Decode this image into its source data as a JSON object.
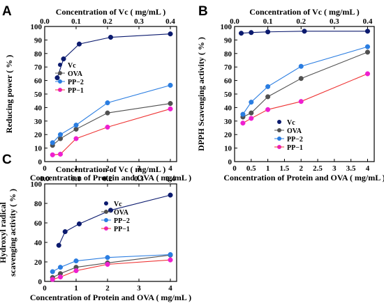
{
  "colors": {
    "Vc": "#0b1a6e",
    "OVA": "#505050",
    "PP-2": "#2a7de1",
    "PP-1": "#ee1fd0",
    "PP-1-line": "#ee3333"
  },
  "chart_data": [
    {
      "panel": "A",
      "type": "line",
      "xlabel": "Concentration of Protein and OVA ( mg/mL )",
      "x2label": "Concentration of Vc ( mg/mL )",
      "ylabel": "Reducing power ( % )",
      "xlim": [
        0,
        4.2
      ],
      "x2lim": [
        0,
        0.42
      ],
      "ylim": [
        0,
        100
      ],
      "xticks": [
        0,
        1,
        2,
        3,
        4
      ],
      "x2ticks": [
        0.0,
        0.1,
        0.2,
        0.3,
        0.4
      ],
      "yticks": [
        0,
        10,
        20,
        30,
        40,
        50,
        60,
        70,
        80,
        90,
        100
      ],
      "legend": "center-left",
      "series": [
        {
          "name": "Vc",
          "axis": "top",
          "x": [
            0.04,
            0.06,
            0.11,
            0.21,
            0.4
          ],
          "y": [
            62,
            76,
            87,
            92,
            94.5
          ]
        },
        {
          "name": "OVA",
          "axis": "bottom",
          "x": [
            0.25,
            0.5,
            1,
            2,
            4
          ],
          "y": [
            12,
            17,
            24,
            36,
            43
          ]
        },
        {
          "name": "PP−2",
          "axis": "bottom",
          "x": [
            0.25,
            0.5,
            1,
            2,
            4
          ],
          "y": [
            14,
            20,
            27,
            43.5,
            56.5
          ]
        },
        {
          "name": "PP−1",
          "axis": "bottom",
          "x": [
            0.25,
            0.5,
            1,
            2,
            4
          ],
          "y": [
            5,
            5.5,
            17,
            25.5,
            39
          ]
        }
      ]
    },
    {
      "panel": "B",
      "type": "line",
      "xlabel": "Concentration of Protein and OVA ( mg/mL )",
      "x2label": "Concentration of Vc ( mg/mL )",
      "ylabel": "DPPH Scavenging activity ( % )",
      "xlim": [
        0,
        4.2
      ],
      "x2lim": [
        0,
        0.42
      ],
      "ylim": [
        0,
        100
      ],
      "xticks": [
        0,
        0.5,
        1,
        1.5,
        2,
        2.5,
        3,
        3.5,
        4
      ],
      "x2ticks": [
        0.0,
        0.1,
        0.2,
        0.3,
        0.4
      ],
      "yticks": [
        0,
        10,
        20,
        30,
        40,
        50,
        60,
        70,
        80,
        90,
        100
      ],
      "legend": "lower-center",
      "series": [
        {
          "name": "Vc",
          "axis": "top",
          "x": [
            0.02,
            0.05,
            0.1,
            0.21,
            0.4
          ],
          "y": [
            95,
            95.5,
            96,
            96.5,
            96.5
          ]
        },
        {
          "name": "OVA",
          "axis": "bottom",
          "x": [
            0.25,
            0.5,
            1,
            2,
            4
          ],
          "y": [
            33,
            36,
            48,
            61.5,
            81
          ]
        },
        {
          "name": "PP−2",
          "axis": "bottom",
          "x": [
            0.25,
            0.5,
            1,
            2,
            4
          ],
          "y": [
            35,
            44,
            55.5,
            70.5,
            85
          ]
        },
        {
          "name": "PP−1",
          "axis": "bottom",
          "x": [
            0.25,
            0.5,
            1,
            2,
            4
          ],
          "y": [
            28.5,
            32,
            38.5,
            44.5,
            65
          ]
        }
      ]
    },
    {
      "panel": "C",
      "type": "line",
      "xlabel": "Concentration of Protein and OVA ( mg/mL )",
      "x2label": "Concentration of Vc ( mg/mL )",
      "ylabel": "Hydroxyl radical scavenging activity ( % )",
      "xlim": [
        0,
        4.2
      ],
      "x2lim": [
        0,
        0.42
      ],
      "ylim": [
        0,
        100
      ],
      "xticks": [
        0,
        1,
        2,
        3,
        4
      ],
      "x2ticks": [
        0.0,
        0.1,
        0.2,
        0.3,
        0.4
      ],
      "yticks": [
        0,
        20,
        40,
        60,
        80,
        100
      ],
      "legend": "center-right",
      "series": [
        {
          "name": "Vc",
          "axis": "top",
          "x": [
            0.045,
            0.065,
            0.11,
            0.21,
            0.4
          ],
          "y": [
            37,
            51,
            59,
            73,
            88.5
          ]
        },
        {
          "name": "OVA",
          "axis": "bottom",
          "x": [
            0.25,
            0.5,
            1,
            2,
            4
          ],
          "y": [
            4,
            8,
            14.5,
            19,
            27
          ]
        },
        {
          "name": "PP−2",
          "axis": "bottom",
          "x": [
            0.25,
            0.5,
            1,
            2,
            4
          ],
          "y": [
            10,
            14.5,
            21,
            24.5,
            27.5
          ]
        },
        {
          "name": "PP−1",
          "axis": "bottom",
          "x": [
            0.25,
            0.5,
            1,
            2,
            4
          ],
          "y": [
            2,
            4.5,
            11,
            17.5,
            22
          ]
        }
      ]
    }
  ]
}
